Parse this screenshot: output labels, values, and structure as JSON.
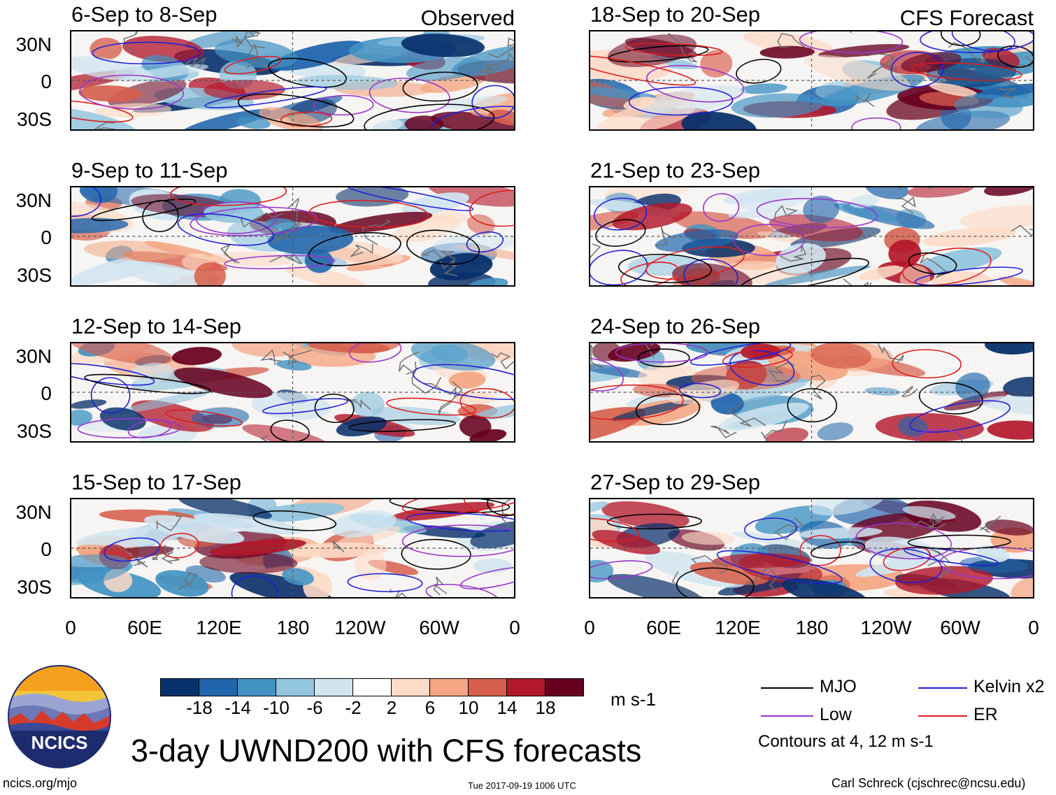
{
  "chart_data": {
    "type": "heatmap",
    "title": "3-day UWND200 with CFS forecasts",
    "variable": "UWND200",
    "units": "m s-1",
    "observed_label": "Observed",
    "forecast_label": "CFS Forecast",
    "lat_ticks": [
      "30N",
      "0",
      "30S"
    ],
    "lon_ticks": [
      "0",
      "60E",
      "120E",
      "180",
      "120W",
      "60W",
      "0"
    ],
    "lat_range": [
      -40,
      40
    ],
    "lon_range": [
      0,
      360
    ],
    "observed_periods": [
      "6-Sep to 8-Sep",
      "9-Sep to 11-Sep",
      "12-Sep to 14-Sep",
      "15-Sep to 17-Sep"
    ],
    "forecast_periods": [
      "18-Sep to 20-Sep",
      "21-Sep to 23-Sep",
      "24-Sep to 26-Sep",
      "27-Sep to 29-Sep"
    ],
    "colorbar": {
      "levels": [
        "-18",
        "-14",
        "-10",
        "-6",
        "-2",
        "2",
        "6",
        "10",
        "14",
        "18"
      ],
      "colors": [
        "#08306b",
        "#2166ac",
        "#4393c3",
        "#92c5de",
        "#d1e5f0",
        "#ffffff",
        "#fddbc7",
        "#f4a582",
        "#d6604d",
        "#b2182b",
        "#67001f"
      ]
    },
    "contour_legend": [
      {
        "name": "MJO",
        "color": "#000000"
      },
      {
        "name": "Kelvin x2",
        "color": "#1f1fd6"
      },
      {
        "name": "Low",
        "color": "#9933cc"
      },
      {
        "name": "ER",
        "color": "#dd1c1c"
      }
    ],
    "contour_note": "Contours at 4, 12 m s-1"
  },
  "footer": {
    "logo_text": "NCICS",
    "url": "ncics.org/mjo",
    "timestamp": "Tue 2017-09-19 1006 UTC",
    "author": "Carl Schreck (cjschrec@ncsu.edu)"
  },
  "colors": {
    "dashed_line": "#555555",
    "coast": "#707070"
  }
}
